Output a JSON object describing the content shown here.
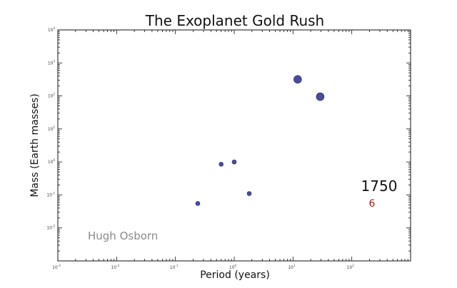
{
  "chart_data": {
    "type": "scatter",
    "title": "The Exoplanet Gold Rush",
    "xlabel": "Period (years)",
    "ylabel": "Mass (Earth masses)",
    "xscale": "log",
    "yscale": "log",
    "xlim": [
      0.001,
      1000
    ],
    "ylim": [
      0.001,
      10000
    ],
    "x_tick_exponents": [
      -3,
      -2,
      -1,
      0,
      1,
      2
    ],
    "y_tick_exponents": [
      -2,
      -1,
      0,
      1,
      2,
      3,
      4
    ],
    "points": [
      {
        "x": 0.24,
        "y": 0.055,
        "size": "small"
      },
      {
        "x": 1.8,
        "y": 0.11,
        "size": "small"
      },
      {
        "x": 0.6,
        "y": 0.85,
        "size": "small"
      },
      {
        "x": 1.0,
        "y": 1.0,
        "size": "small"
      },
      {
        "x": 12,
        "y": 318,
        "size": "large"
      },
      {
        "x": 29,
        "y": 95,
        "size": "large"
      }
    ],
    "marker_color": "#4b4b9a",
    "annotations": {
      "year": "1750",
      "count": "6",
      "credit": "Hugh Osborn"
    },
    "tick_base": "10"
  }
}
